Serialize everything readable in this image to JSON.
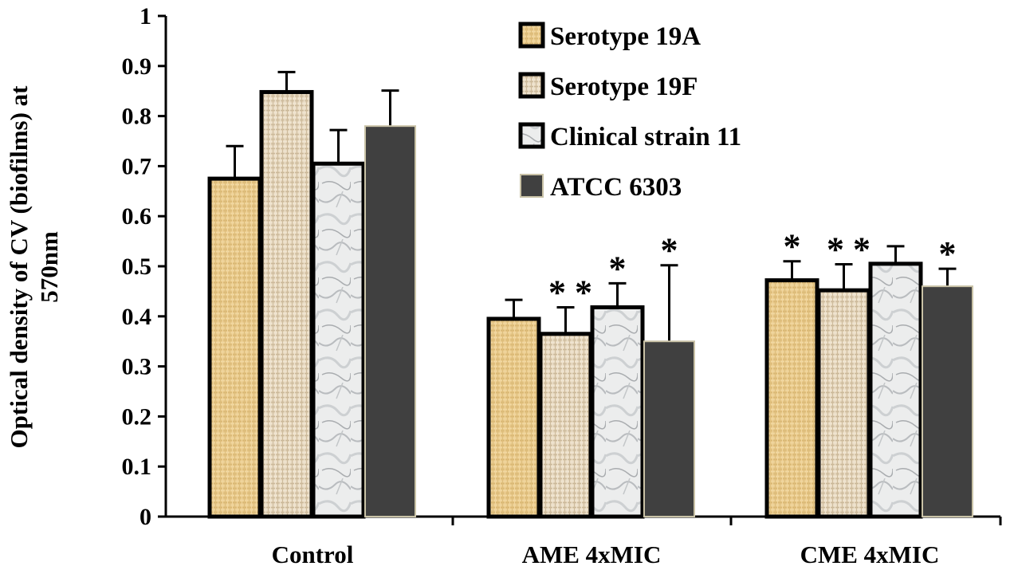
{
  "chart_data": {
    "type": "bar",
    "title": "",
    "xlabel": "",
    "ylabel": "Optical density of CV (biofilms) at 570nm",
    "ylabel_lines": [
      "Optical density of CV (biofilms) at",
      "570nm"
    ],
    "ylim": [
      0,
      1
    ],
    "yticks": [
      0,
      0.1,
      0.2,
      0.3,
      0.4,
      0.5,
      0.6,
      0.7,
      0.8,
      0.9,
      1
    ],
    "ytick_labels": [
      "0",
      "0.1",
      "0.2",
      "0.3",
      "0.4",
      "0.5",
      "0.6",
      "0.7",
      "0.8",
      "0.9",
      "1"
    ],
    "categories": [
      "Control",
      "AME 4xMIC",
      "CME 4xMIC"
    ],
    "legend_position": "top-right",
    "series": [
      {
        "name": "Serotype 19A",
        "values": [
          0.675,
          0.395,
          0.472
        ],
        "errors": [
          0.065,
          0.038,
          0.038
        ],
        "significance": [
          "",
          "",
          "*"
        ],
        "color": "#e8c889",
        "pattern": "burlap-gold"
      },
      {
        "name": "Serotype 19F",
        "values": [
          0.848,
          0.365,
          0.452
        ],
        "errors": [
          0.04,
          0.053,
          0.052
        ],
        "significance": [
          "",
          "**",
          "**"
        ],
        "color": "#e2d2b6",
        "pattern": "burlap-light"
      },
      {
        "name": "Clinical strain 11",
        "values": [
          0.705,
          0.418,
          0.505
        ],
        "errors": [
          0.067,
          0.048,
          0.035
        ],
        "significance": [
          "",
          "*",
          ""
        ],
        "color": "#e8e9ea",
        "pattern": "marble"
      },
      {
        "name": "ATCC 6303",
        "values": [
          0.78,
          0.35,
          0.46
        ],
        "errors": [
          0.071,
          0.152,
          0.035
        ],
        "significance": [
          "",
          "*",
          "*"
        ],
        "color": "#404040",
        "pattern": "solid"
      }
    ]
  }
}
